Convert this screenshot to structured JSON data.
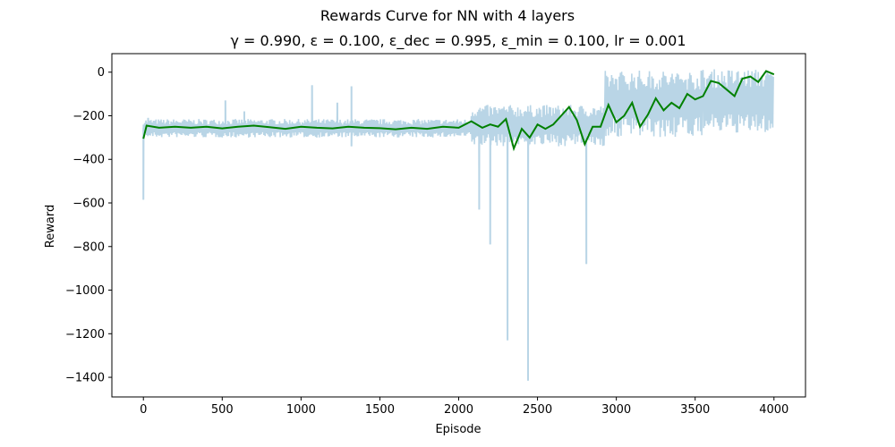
{
  "chart_data": {
    "type": "line",
    "title": "Rewards Curve for NN with 4 layers",
    "subtitle": "γ = 0.990, ε = 0.100, ε_dec = 0.995, ε_min = 0.100, lr = 0.001",
    "xlabel": "Episode",
    "ylabel": "Reward",
    "xlim": [
      -200,
      4200
    ],
    "ylim": [
      -1490,
      85
    ],
    "xticks": [
      0,
      500,
      1000,
      1500,
      2000,
      2500,
      3000,
      3500,
      4000
    ],
    "yticks": [
      0,
      -200,
      -400,
      -600,
      -800,
      -1000,
      -1200,
      -1400
    ],
    "grid": false,
    "legend": "none",
    "series": [
      {
        "role": "raw",
        "color": "#b9d5e6",
        "spikes": [
          {
            "x": 0,
            "y": -585
          },
          {
            "x": 30,
            "y": -210
          },
          {
            "x": 520,
            "y": -130
          },
          {
            "x": 640,
            "y": -180
          },
          {
            "x": 1070,
            "y": -60
          },
          {
            "x": 1230,
            "y": -140
          },
          {
            "x": 1320,
            "y": -65
          },
          {
            "x": 1320,
            "y": -340
          },
          {
            "x": 2130,
            "y": -630
          },
          {
            "x": 2200,
            "y": -790
          },
          {
            "x": 2310,
            "y": -1230
          },
          {
            "x": 2440,
            "y": -1415
          },
          {
            "x": 2810,
            "y": -880
          }
        ],
        "segments": [
          {
            "x": [
              0,
              2080
            ],
            "upper": -215,
            "lower": -300
          },
          {
            "x": [
              2080,
              2930
            ],
            "upper": -150,
            "lower": -340
          },
          {
            "x": [
              2930,
              3550
            ],
            "upper": 10,
            "lower": -300
          },
          {
            "x": [
              3550,
              4000
            ],
            "upper": 15,
            "lower": -280
          }
        ]
      },
      {
        "role": "smoothed",
        "color": "#008000",
        "points": [
          [
            0,
            -305
          ],
          [
            20,
            -245
          ],
          [
            100,
            -255
          ],
          [
            200,
            -250
          ],
          [
            300,
            -255
          ],
          [
            400,
            -250
          ],
          [
            500,
            -258
          ],
          [
            600,
            -250
          ],
          [
            700,
            -245
          ],
          [
            800,
            -252
          ],
          [
            900,
            -260
          ],
          [
            1000,
            -250
          ],
          [
            1100,
            -255
          ],
          [
            1200,
            -258
          ],
          [
            1300,
            -250
          ],
          [
            1400,
            -255
          ],
          [
            1500,
            -257
          ],
          [
            1600,
            -262
          ],
          [
            1700,
            -255
          ],
          [
            1800,
            -260
          ],
          [
            1900,
            -250
          ],
          [
            2000,
            -255
          ],
          [
            2080,
            -225
          ],
          [
            2150,
            -255
          ],
          [
            2200,
            -240
          ],
          [
            2250,
            -250
          ],
          [
            2300,
            -215
          ],
          [
            2350,
            -350
          ],
          [
            2400,
            -260
          ],
          [
            2450,
            -300
          ],
          [
            2500,
            -240
          ],
          [
            2550,
            -260
          ],
          [
            2600,
            -240
          ],
          [
            2650,
            -200
          ],
          [
            2700,
            -160
          ],
          [
            2750,
            -220
          ],
          [
            2800,
            -330
          ],
          [
            2850,
            -250
          ],
          [
            2900,
            -250
          ],
          [
            2950,
            -150
          ],
          [
            3000,
            -230
          ],
          [
            3050,
            -200
          ],
          [
            3100,
            -140
          ],
          [
            3150,
            -250
          ],
          [
            3200,
            -195
          ],
          [
            3250,
            -120
          ],
          [
            3300,
            -175
          ],
          [
            3350,
            -140
          ],
          [
            3400,
            -165
          ],
          [
            3450,
            -100
          ],
          [
            3500,
            -125
          ],
          [
            3550,
            -110
          ],
          [
            3600,
            -40
          ],
          [
            3650,
            -50
          ],
          [
            3700,
            -80
          ],
          [
            3750,
            -110
          ],
          [
            3800,
            -30
          ],
          [
            3850,
            -20
          ],
          [
            3900,
            -45
          ],
          [
            3950,
            5
          ],
          [
            4000,
            -10
          ]
        ]
      }
    ]
  }
}
